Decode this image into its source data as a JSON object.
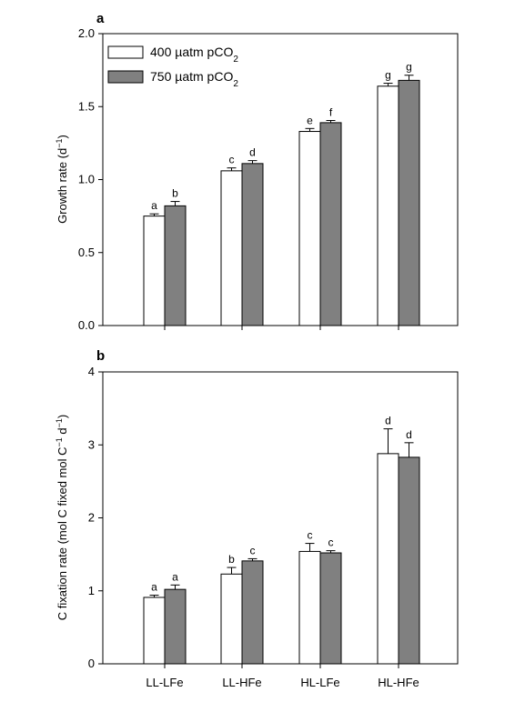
{
  "chart_data": [
    {
      "panel": "a",
      "type": "bar",
      "categories": [
        "LL-LFe",
        "LL-HFe",
        "HL-LFe",
        "HL-HFe"
      ],
      "series": [
        {
          "name": "400 µatm pCO2",
          "color": "#ffffff",
          "values": [
            0.75,
            1.06,
            1.33,
            1.64
          ],
          "errors": [
            0.015,
            0.02,
            0.02,
            0.02
          ],
          "letters": [
            "a",
            "c",
            "e",
            "g"
          ]
        },
        {
          "name": "750 µatm pCO2",
          "color": "#808080",
          "values": [
            0.82,
            1.11,
            1.39,
            1.68
          ],
          "errors": [
            0.03,
            0.02,
            0.015,
            0.035
          ],
          "letters": [
            "b",
            "d",
            "f",
            "g"
          ]
        }
      ],
      "ylabel": "Growth rate (d⁻¹)",
      "ylim": [
        0,
        2.0
      ],
      "yticks": [
        "0.0",
        "0.5",
        "1.0",
        "1.5",
        "2.0"
      ],
      "legend_placement": "top-left",
      "grid": false
    },
    {
      "panel": "b",
      "type": "bar",
      "categories": [
        "LL-LFe",
        "LL-HFe",
        "HL-LFe",
        "HL-HFe"
      ],
      "series": [
        {
          "name": "400 µatm pCO2",
          "color": "#ffffff",
          "values": [
            0.91,
            1.23,
            1.54,
            2.88
          ],
          "errors": [
            0.03,
            0.09,
            0.11,
            0.34
          ],
          "letters": [
            "a",
            "b",
            "c",
            "d"
          ]
        },
        {
          "name": "750 µatm pCO2",
          "color": "#808080",
          "values": [
            1.02,
            1.41,
            1.52,
            2.83
          ],
          "errors": [
            0.06,
            0.03,
            0.03,
            0.2
          ],
          "letters": [
            "a",
            "c",
            "c",
            "d"
          ]
        }
      ],
      "ylabel": "C fixation rate (mol C fixed mol C⁻¹ d⁻¹)",
      "ylim": [
        0,
        4
      ],
      "yticks": [
        "0",
        "1",
        "2",
        "3",
        "4"
      ],
      "grid": false
    }
  ],
  "legend": [
    {
      "value": "400",
      "unit": "µatm pCO",
      "sub": "2"
    },
    {
      "value": "750",
      "unit": "µatm pCO",
      "sub": "2"
    }
  ]
}
